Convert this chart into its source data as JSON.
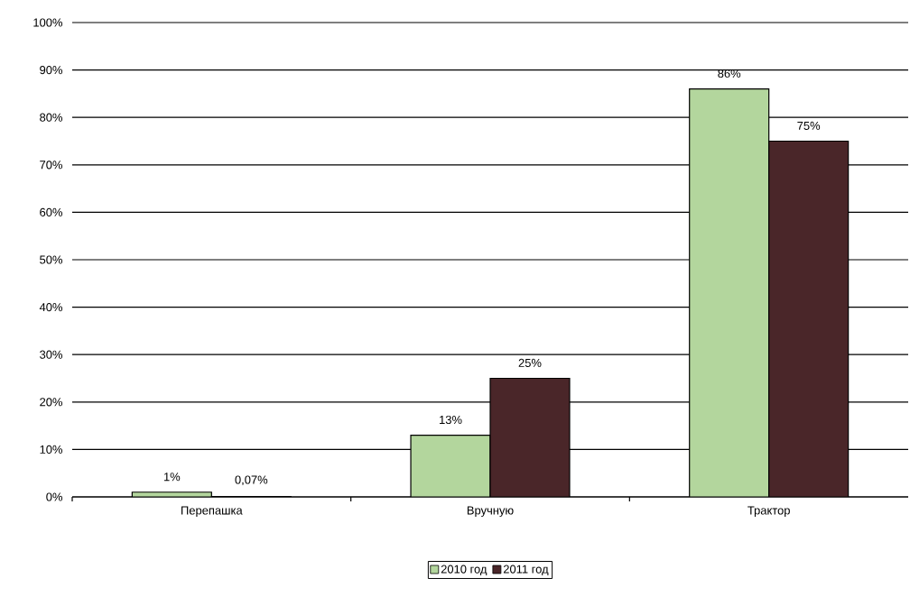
{
  "chart_data": {
    "type": "bar",
    "categories": [
      "Перепашка",
      "Вручную",
      "Трактор"
    ],
    "series": [
      {
        "name": "2010 год",
        "color": "#b3d69d",
        "values": [
          1,
          13,
          86
        ],
        "value_labels": [
          "1%",
          "13%",
          "86%"
        ]
      },
      {
        "name": "2011 год",
        "color": "#4a2629",
        "values": [
          0.07,
          25,
          75
        ],
        "value_labels": [
          "0,07%",
          "25%",
          "75%"
        ]
      }
    ],
    "ylim": [
      0,
      100
    ],
    "yticks": [
      {
        "value": 0,
        "label": "0%"
      },
      {
        "value": 10,
        "label": "10%"
      },
      {
        "value": 20,
        "label": "20%"
      },
      {
        "value": 30,
        "label": "30%"
      },
      {
        "value": 40,
        "label": "40%"
      },
      {
        "value": 50,
        "label": "50%"
      },
      {
        "value": 60,
        "label": "60%"
      },
      {
        "value": 70,
        "label": "70%"
      },
      {
        "value": 80,
        "label": "80%"
      },
      {
        "value": 90,
        "label": "90%"
      },
      {
        "value": 100,
        "label": "100%"
      }
    ],
    "grid": "y",
    "legend": "bottom"
  }
}
